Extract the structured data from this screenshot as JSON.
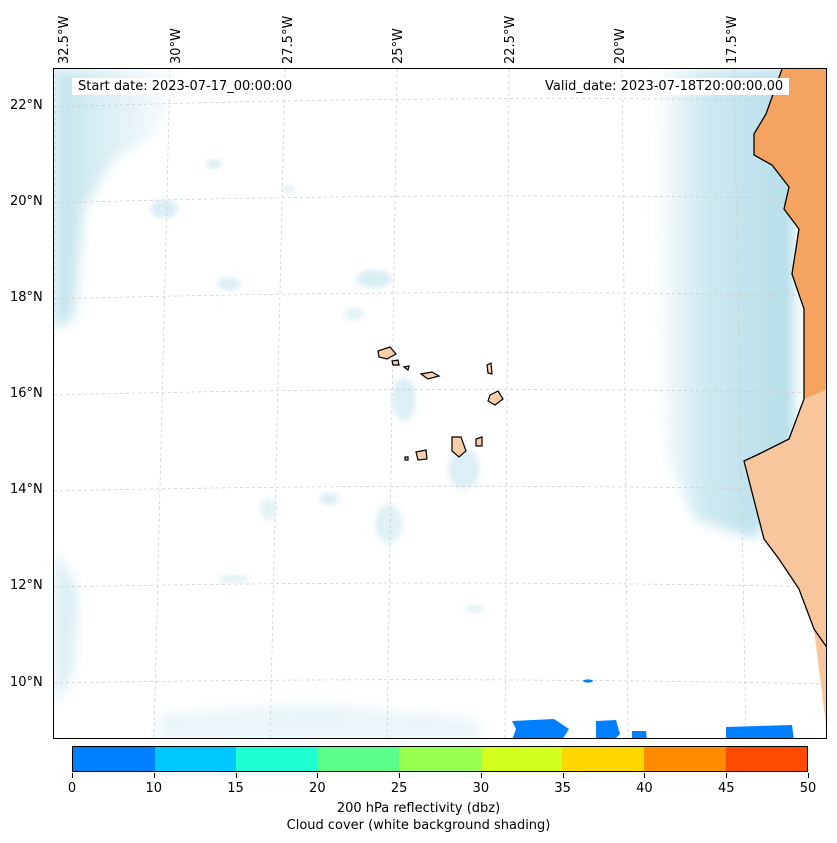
{
  "header": {
    "start_date": "Start date: 2023-07-17_00:00:00",
    "valid_date": "Valid_date: 2023-07-18T20:00:00.00"
  },
  "longitude_labels": [
    "32.5°W",
    "30°W",
    "27.5°W",
    "25°W",
    "22.5°W",
    "20°W",
    "17.5°W"
  ],
  "latitude_labels": [
    "22°N",
    "20°N",
    "18°N",
    "16°N",
    "14°N",
    "12°N",
    "10°N"
  ],
  "colorbar": {
    "ticks": [
      "0",
      "10",
      "15",
      "20",
      "25",
      "30",
      "35",
      "40",
      "45",
      "50"
    ],
    "colors": [
      "#0080ff",
      "#00c8ff",
      "#1effd2",
      "#5aff8c",
      "#96ff50",
      "#d2ff1e",
      "#ffd700",
      "#ff8c00",
      "#ff4b00"
    ],
    "title_line1": "200 hPa reflectivity (dbz)",
    "title_line2": "Cloud cover (white background shading)"
  },
  "colors": {
    "cloud": "#a8d8e6",
    "land": "#f4a460",
    "land_light": "#f8cda8",
    "reflectivity_low": "#0080ff"
  }
}
